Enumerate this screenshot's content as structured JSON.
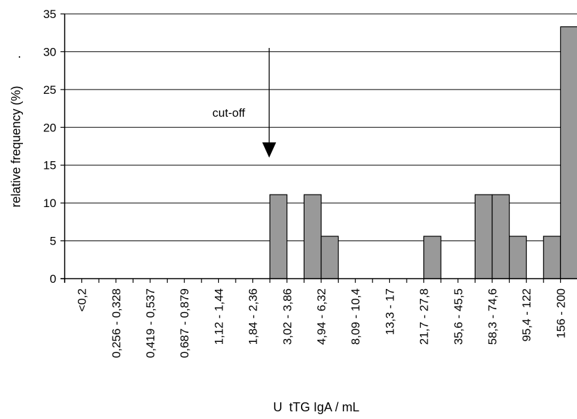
{
  "chart_data": {
    "type": "bar",
    "title": "",
    "xlabel": "U  tTG IgA / mL",
    "ylabel": "relative frequency (%)",
    "ylabel_suffix": ".",
    "ylim": [
      0,
      35
    ],
    "yticks": [
      0,
      5,
      10,
      15,
      20,
      25,
      30,
      35
    ],
    "grid": "horizontal",
    "legend": "none",
    "bar_color": "#999999",
    "x_tick_labels": [
      "<0,2",
      "0,256 - 0,328",
      "0,419 - 0,537",
      "0,687 - 0,879",
      "1,12 - 1,44",
      "1,84 - 2,36",
      "3,02 - 3,86",
      "4,94 - 6,32",
      "8,09 - 10,4",
      "13,3 - 17",
      "21,7 - 27,8",
      "35,6 - 45,5",
      "58,3 - 74,6",
      "95,4 - 122",
      "156 - 200"
    ],
    "bins": 30,
    "label_every": 2,
    "values": [
      0,
      0,
      0,
      0,
      0,
      0,
      0,
      0,
      0,
      0,
      0,
      0,
      11.1,
      0,
      11.1,
      5.6,
      0,
      0,
      0,
      0,
      0,
      5.6,
      0,
      0,
      11.1,
      11.1,
      5.6,
      0,
      5.6,
      33.3
    ],
    "annotation": {
      "text": "cut-off",
      "arrow_bin": 12,
      "arrow_from": 30.5,
      "arrow_to": 16
    }
  }
}
